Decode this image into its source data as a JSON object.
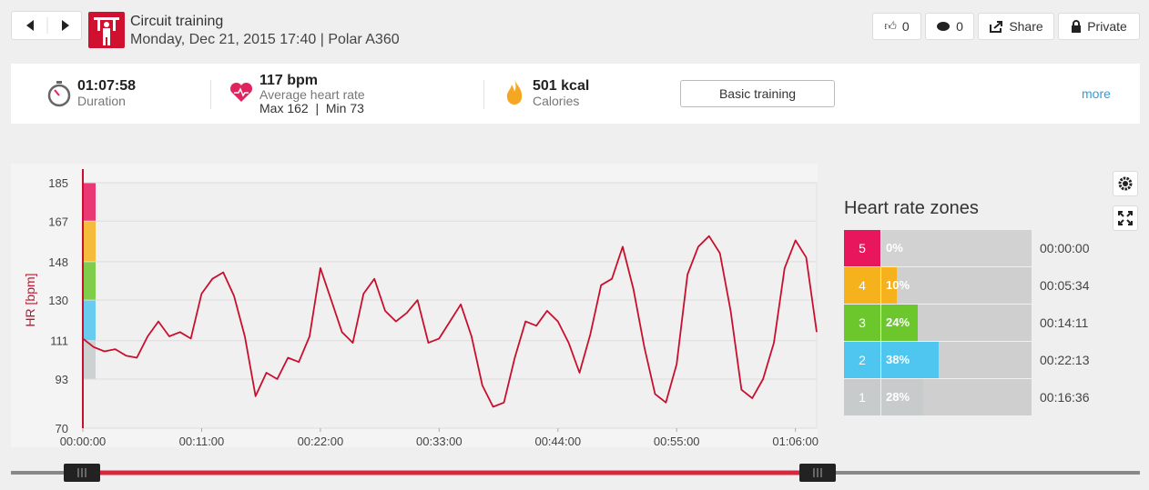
{
  "header": {
    "title": "Circuit training",
    "subtitle": "Monday, Dec 21, 2015 17:40 | Polar A360",
    "likes": "0",
    "comments": "0",
    "share": "Share",
    "privacy": "Private"
  },
  "stats": {
    "duration": {
      "value": "01:07:58",
      "label": "Duration"
    },
    "heart_rate": {
      "value": "117 bpm",
      "label": "Average heart rate",
      "detail": "Max 162  |  Min 73"
    },
    "calories": {
      "value": "501 kcal",
      "label": "Calories"
    },
    "training_button": "Basic training",
    "more": "more"
  },
  "chart_data": {
    "type": "line",
    "ylabel": "HR [bpm]",
    "color": "#c8102e",
    "x": [
      0,
      60,
      120,
      180,
      240,
      300,
      360,
      420,
      480,
      540,
      600,
      660,
      720,
      780,
      840,
      900,
      960,
      1020,
      1080,
      1140,
      1200,
      1260,
      1320,
      1380,
      1440,
      1500,
      1560,
      1620,
      1680,
      1740,
      1800,
      1860,
      1920,
      1980,
      2040,
      2100,
      2160,
      2220,
      2280,
      2340,
      2400,
      2460,
      2520,
      2580,
      2640,
      2700,
      2760,
      2820,
      2880,
      2940,
      3000,
      3060,
      3120,
      3180,
      3240,
      3300,
      3360,
      3420,
      3480,
      3540,
      3600,
      3660,
      3720,
      3780,
      3840,
      3900,
      3960,
      4020,
      4078
    ],
    "series": [
      {
        "name": "HR",
        "values": [
          112,
          108,
          106,
          107,
          104,
          103,
          113,
          120,
          113,
          115,
          112,
          133,
          140,
          143,
          132,
          113,
          85,
          96,
          93,
          103,
          101,
          113,
          145,
          130,
          115,
          110,
          133,
          140,
          125,
          120,
          124,
          130,
          110,
          112,
          120,
          128,
          113,
          90,
          80,
          82,
          103,
          120,
          118,
          125,
          120,
          110,
          96,
          114,
          137,
          140,
          155,
          135,
          108,
          86,
          82,
          100,
          142,
          155,
          160,
          152,
          125,
          88,
          84,
          93,
          110,
          145,
          158,
          150,
          115
        ]
      }
    ],
    "xlim": [
      0,
      4078
    ],
    "ylim": [
      70,
      185
    ],
    "xticks": [
      {
        "value": 0,
        "label": "00:00:00"
      },
      {
        "value": 660,
        "label": "00:11:00"
      },
      {
        "value": 1320,
        "label": "00:22:00"
      },
      {
        "value": 1980,
        "label": "00:33:00"
      },
      {
        "value": 2640,
        "label": "00:44:00"
      },
      {
        "value": 3300,
        "label": "00:55:00"
      },
      {
        "value": 3960,
        "label": "01:06:00"
      }
    ],
    "yticks": [
      70,
      93,
      111,
      130,
      148,
      167,
      185
    ],
    "grid": true
  },
  "zones": {
    "title": "Heart rate zones",
    "rows": [
      {
        "number": "5",
        "percent": 0,
        "percent_label": "0%",
        "time": "00:00:00",
        "color": "#e8175d"
      },
      {
        "number": "4",
        "percent": 10,
        "percent_label": "10%",
        "time": "00:05:34",
        "color": "#f5b21c"
      },
      {
        "number": "3",
        "percent": 24,
        "percent_label": "24%",
        "time": "00:14:11",
        "color": "#6cc72d"
      },
      {
        "number": "2",
        "percent": 38,
        "percent_label": "38%",
        "time": "00:22:13",
        "color": "#4fc6ef"
      },
      {
        "number": "1",
        "percent": 28,
        "percent_label": "28%",
        "time": "00:16:36",
        "color": "#c7cbcb"
      }
    ]
  }
}
